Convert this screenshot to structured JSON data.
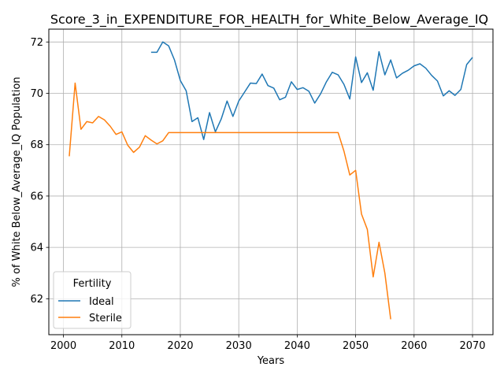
{
  "chart_data": {
    "type": "line",
    "title": "Score_3_in_EXPENDITURE_FOR_HEALTH_for_White_Below_Average_IQ",
    "xlabel": "Years",
    "ylabel": "% of White Below_Average_IQ Population",
    "xlim": [
      1997.5,
      2073.5
    ],
    "ylim": [
      60.6,
      72.5
    ],
    "xticks": [
      2000,
      2010,
      2020,
      2030,
      2040,
      2050,
      2060,
      2070
    ],
    "yticks": [
      62,
      64,
      66,
      68,
      70,
      72
    ],
    "grid": true,
    "legend": {
      "title": "Fertility",
      "placement": "lower-left"
    },
    "series": [
      {
        "name": "Ideal",
        "color": "#1f77b4",
        "x": [
          2015,
          2016,
          2017,
          2018,
          2019,
          2020,
          2021,
          2022,
          2023,
          2024,
          2025,
          2026,
          2027,
          2028,
          2029,
          2030,
          2031,
          2032,
          2033,
          2034,
          2035,
          2036,
          2037,
          2038,
          2039,
          2040,
          2041,
          2042,
          2043,
          2044,
          2045,
          2046,
          2047,
          2048,
          2049,
          2050,
          2051,
          2052,
          2053,
          2054,
          2055,
          2056,
          2057,
          2058,
          2059,
          2060,
          2061,
          2062,
          2063,
          2064,
          2065,
          2066,
          2067,
          2068,
          2069,
          2070
        ],
        "y": [
          71.6,
          71.6,
          72.0,
          71.85,
          71.3,
          70.5,
          70.1,
          68.9,
          69.05,
          68.2,
          69.25,
          68.5,
          69.0,
          69.7,
          69.1,
          69.7,
          70.05,
          70.4,
          70.38,
          70.75,
          70.3,
          70.2,
          69.75,
          69.85,
          70.45,
          70.15,
          70.22,
          70.08,
          69.62,
          69.98,
          70.45,
          70.82,
          70.72,
          70.35,
          69.78,
          71.42,
          70.42,
          70.8,
          70.12,
          71.62,
          70.72,
          71.3,
          70.6,
          70.78,
          70.9,
          71.07,
          71.15,
          70.98,
          70.7,
          70.48,
          69.9,
          70.1,
          69.92,
          70.15,
          71.12,
          71.4
        ]
      },
      {
        "name": "Sterile",
        "color": "#ff7f0e",
        "x": [
          2001,
          2002,
          2003,
          2004,
          2005,
          2006,
          2007,
          2008,
          2009,
          2010,
          2011,
          2012,
          2013,
          2014,
          2015,
          2016,
          2017,
          2018,
          2019,
          2020,
          2021,
          2022,
          2023,
          2024,
          2025,
          2026,
          2027,
          2028,
          2029,
          2030,
          2031,
          2032,
          2033,
          2034,
          2035,
          2036,
          2037,
          2038,
          2039,
          2040,
          2041,
          2042,
          2043,
          2044,
          2045,
          2046,
          2047,
          2048,
          2049,
          2050,
          2051,
          2052,
          2053,
          2054,
          2055,
          2056
        ],
        "y": [
          67.55,
          70.4,
          68.6,
          68.9,
          68.85,
          69.1,
          68.97,
          68.72,
          68.4,
          68.5,
          67.98,
          67.7,
          67.9,
          68.35,
          68.18,
          68.03,
          68.15,
          68.47,
          68.47,
          68.47,
          68.47,
          68.47,
          68.47,
          68.47,
          68.47,
          68.47,
          68.47,
          68.47,
          68.47,
          68.47,
          68.47,
          68.47,
          68.47,
          68.47,
          68.47,
          68.47,
          68.47,
          68.47,
          68.47,
          68.47,
          68.47,
          68.47,
          68.47,
          68.47,
          68.47,
          68.47,
          68.47,
          67.75,
          66.82,
          67.0,
          65.3,
          64.7,
          62.85,
          64.2,
          63.0,
          61.2
        ]
      }
    ]
  }
}
